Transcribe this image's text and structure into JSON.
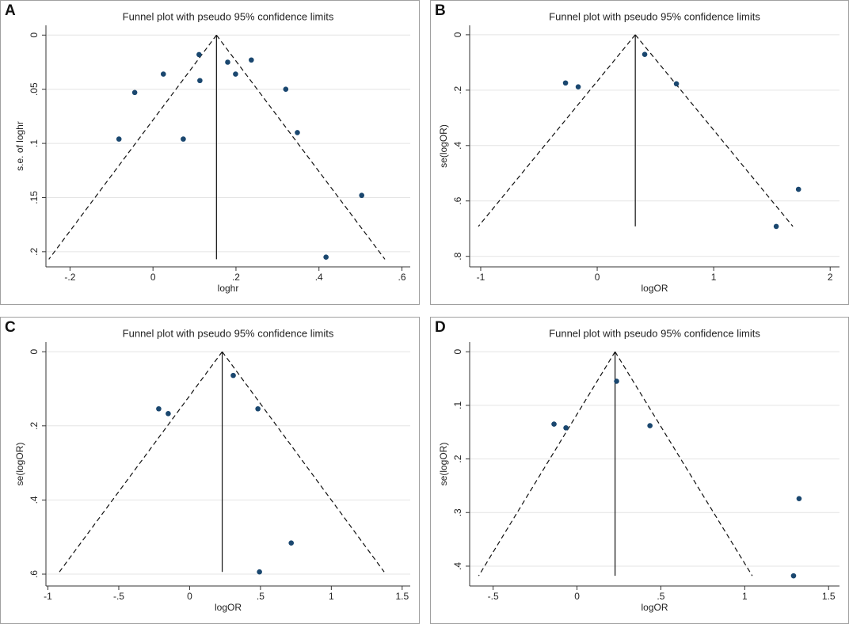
{
  "chart_data": [
    {
      "panel": "A",
      "type": "scatter",
      "title": "Funnel plot with pseudo 95% confidence limits",
      "xlabel": "loghr",
      "ylabel": "s.e. of loghr",
      "color": "#1a476f",
      "y_reversed": true,
      "grid": true,
      "x": [
        -0.082,
        -0.044,
        0.025,
        0.073,
        0.111,
        0.113,
        0.18,
        0.199,
        0.237,
        0.32,
        0.348,
        0.503,
        0.417
      ],
      "y": [
        0.096,
        0.053,
        0.036,
        0.096,
        0.018,
        0.042,
        0.025,
        0.036,
        0.023,
        0.05,
        0.09,
        0.148,
        0.205
      ],
      "center_line": {
        "x": [
          0.153,
          0.153
        ],
        "y": [
          0,
          0.207
        ]
      },
      "lower_limit": {
        "x": [
          0.153,
          -0.251
        ],
        "y": [
          0,
          0.207
        ]
      },
      "upper_limit": {
        "x": [
          0.153,
          0.559
        ],
        "y": [
          0,
          0.207
        ]
      },
      "xlim": [
        -0.258,
        0.62
      ],
      "ylim": [
        -0.009,
        0.214
      ],
      "xticks": [
        {
          "value": -0.2,
          "label": "-.2"
        },
        0,
        {
          "value": 0.2,
          "label": ".2"
        },
        {
          "value": 0.4,
          "label": ".4"
        },
        {
          "value": 0.6,
          "label": ".6"
        }
      ],
      "yticks": [
        0,
        {
          "value": 0.05,
          "label": ".05"
        },
        {
          "value": 0.1,
          "label": ".1"
        },
        {
          "value": 0.15,
          "label": ".15"
        },
        {
          "value": 0.2,
          "label": ".2"
        }
      ]
    },
    {
      "panel": "B",
      "type": "scatter",
      "title": "Funnel plot with pseudo 95% confidence limits",
      "xlabel": "logOR",
      "ylabel": "se(logOR)",
      "color": "#1a476f",
      "y_reversed": true,
      "grid": true,
      "x": [
        -0.272,
        -0.163,
        0.408,
        0.68,
        1.537,
        1.728
      ],
      "y": [
        0.174,
        0.188,
        0.071,
        0.177,
        0.692,
        0.558
      ],
      "center_line": {
        "x": [
          0.327,
          0.327
        ],
        "y": [
          0,
          0.692
        ]
      },
      "lower_limit": {
        "x": [
          0.327,
          -1.02
        ],
        "y": [
          0,
          0.692
        ]
      },
      "upper_limit": {
        "x": [
          0.327,
          1.68
        ],
        "y": [
          0,
          0.692
        ]
      },
      "xlim": [
        -1.095,
        2.08
      ],
      "ylim": [
        -0.034,
        0.838
      ],
      "xticks": [
        -1,
        0,
        1,
        2
      ],
      "yticks": [
        0,
        {
          "value": 0.2,
          "label": ".2"
        },
        {
          "value": 0.4,
          "label": ".4"
        },
        {
          "value": 0.6,
          "label": ".6"
        },
        {
          "value": 0.8,
          "label": ".8"
        }
      ]
    },
    {
      "panel": "C",
      "type": "scatter",
      "title": "Funnel plot with pseudo 95% confidence limits",
      "xlabel": "logOR",
      "ylabel": "se(logOR)",
      "color": "#1a476f",
      "y_reversed": true,
      "grid": true,
      "x": [
        -0.218,
        -0.151,
        0.308,
        0.482,
        0.717,
        0.493
      ],
      "y": [
        0.154,
        0.167,
        0.064,
        0.154,
        0.516,
        0.594
      ],
      "center_line": {
        "x": [
          0.23,
          0.23
        ],
        "y": [
          0,
          0.594
        ]
      },
      "lower_limit": {
        "x": [
          0.23,
          -0.919
        ],
        "y": [
          0,
          0.594
        ]
      },
      "upper_limit": {
        "x": [
          0.23,
          1.373
        ],
        "y": [
          0,
          0.594
        ]
      },
      "xlim": [
        -1.014,
        1.557
      ],
      "ylim": [
        -0.026,
        0.632
      ],
      "xticks": [
        -1,
        {
          "value": -0.5,
          "label": "-.5"
        },
        0,
        {
          "value": 0.5,
          "label": ".5"
        },
        1,
        {
          "value": 1.5,
          "label": "1.5"
        }
      ],
      "yticks": [
        0,
        {
          "value": 0.2,
          "label": ".2"
        },
        {
          "value": 0.4,
          "label": ".4"
        },
        {
          "value": 0.6,
          "label": ".6"
        }
      ]
    },
    {
      "panel": "D",
      "type": "scatter",
      "title": "Funnel plot with pseudo 95% confidence limits",
      "xlabel": "logOR",
      "ylabel": "se(logOR)",
      "color": "#1a476f",
      "y_reversed": true,
      "grid": true,
      "x": [
        -0.137,
        -0.066,
        0.236,
        0.435,
        1.324,
        1.291
      ],
      "y": [
        0.135,
        0.142,
        0.055,
        0.138,
        0.274,
        0.418
      ],
      "center_line": {
        "x": [
          0.227,
          0.227
        ],
        "y": [
          0,
          0.418
        ]
      },
      "lower_limit": {
        "x": [
          0.227,
          -0.586
        ],
        "y": [
          0,
          0.418
        ]
      },
      "upper_limit": {
        "x": [
          0.227,
          1.045
        ],
        "y": [
          0,
          0.418
        ]
      },
      "xlim": [
        -0.64,
        1.565
      ],
      "ylim": [
        -0.018,
        0.437
      ],
      "xticks": [
        {
          "value": -0.5,
          "label": "-.5"
        },
        0,
        {
          "value": 0.5,
          "label": ".5"
        },
        1,
        {
          "value": 1.5,
          "label": "1.5"
        }
      ],
      "yticks": [
        0,
        {
          "value": 0.1,
          "label": ".1"
        },
        {
          "value": 0.2,
          "label": ".2"
        },
        {
          "value": 0.3,
          "label": ".3"
        },
        {
          "value": 0.4,
          "label": ".4"
        }
      ]
    }
  ]
}
